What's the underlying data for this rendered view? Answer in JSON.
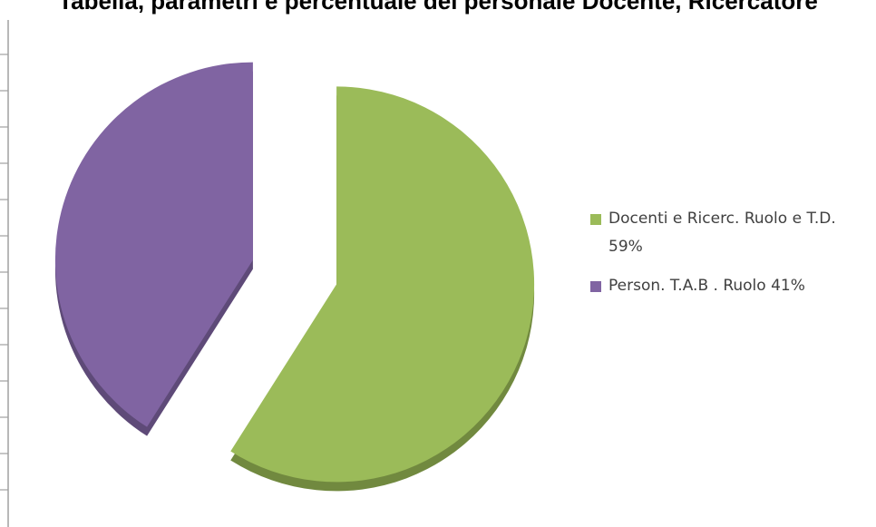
{
  "page": {
    "title_text": "Tabella, parametri e percentuale del personale Docente, Ricercatore"
  },
  "chart_data": {
    "type": "pie",
    "style": "3d-exploded",
    "slices": [
      {
        "label": "Docenti e Ricerc. Ruolo e T.D. 59%",
        "value": 59,
        "color": "#9BBB59",
        "shade": "#71893F"
      },
      {
        "label": "Person. T.A.B . Ruolo 41%",
        "value": 41,
        "color": "#8064A2",
        "shade": "#5E4A78"
      }
    ],
    "legend_position": "right"
  }
}
